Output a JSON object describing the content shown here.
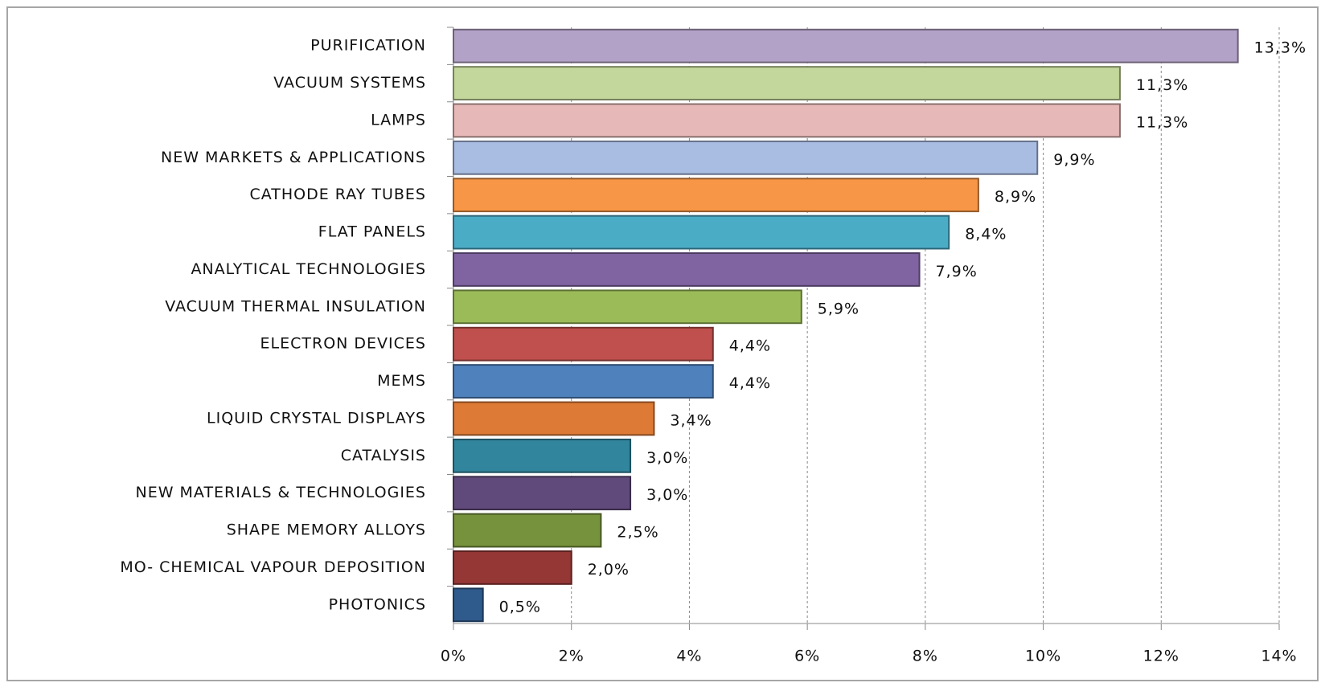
{
  "chart_data": {
    "type": "hbar",
    "categories": [
      "PURIFICATION",
      "VACUUM SYSTEMS",
      "LAMPS",
      "NEW MARKETS & APPLICATIONS",
      "CATHODE RAY TUBES",
      "FLAT PANELS",
      "ANALYTICAL TECHNOLOGIES",
      "VACUUM THERMAL INSULATION",
      "ELECTRON DEVICES",
      "MEMS",
      "LIQUID CRYSTAL DISPLAYS",
      "CATALYSIS",
      "NEW MATERIALS & TECHNOLOGIES",
      "SHAPE MEMORY ALLOYS",
      "MO- CHEMICAL VAPOUR DEPOSITION",
      "PHOTONICS"
    ],
    "values": [
      13.3,
      11.3,
      11.3,
      9.9,
      8.9,
      8.4,
      7.9,
      5.9,
      4.4,
      4.4,
      3.4,
      3.0,
      3.0,
      2.5,
      2.0,
      0.5
    ],
    "value_labels": [
      "13,3%",
      "11,3%",
      "11,3%",
      "9,9%",
      "8,9%",
      "8,4%",
      "7,9%",
      "5,9%",
      "4,4%",
      "4,4%",
      "3,4%",
      "3,0%",
      "3,0%",
      "2,5%",
      "2,0%",
      "0,5%"
    ],
    "colors": [
      "#b3a2c7",
      "#c3d69b",
      "#e6b9b8",
      "#a9bde2",
      "#f79646",
      "#4bacc6",
      "#8064a2",
      "#9bbb59",
      "#c0504d",
      "#4f81bd",
      "#dd7a35",
      "#31859c",
      "#604a7b",
      "#76923c",
      "#953735",
      "#2f5a8c"
    ],
    "xlim": [
      0,
      14
    ],
    "xticks": [
      {
        "value": 0,
        "label": "0%"
      },
      {
        "value": 2,
        "label": "2%"
      },
      {
        "value": 4,
        "label": "4%"
      },
      {
        "value": 6,
        "label": "6%"
      },
      {
        "value": 8,
        "label": "8%"
      },
      {
        "value": 10,
        "label": "10%"
      },
      {
        "value": 12,
        "label": "12%"
      },
      {
        "value": 14,
        "label": "14%"
      }
    ],
    "grid": true
  }
}
